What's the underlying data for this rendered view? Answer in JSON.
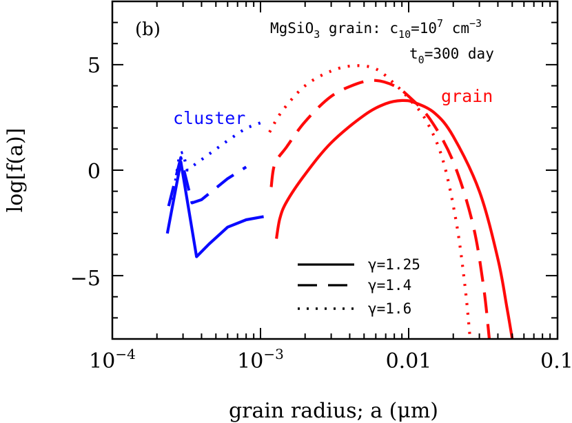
{
  "chart_data": {
    "type": "line",
    "panel_label": "(b)",
    "xlabel": "grain radius; a (μm)",
    "ylabel": "log[f(a)]",
    "xscale": "log",
    "xlim": [
      0.0001,
      0.1
    ],
    "ylim": [
      -8,
      8
    ],
    "x_ticks": [
      {
        "value": 0.0001,
        "base": "10",
        "exp": "−4"
      },
      {
        "value": 0.001,
        "base": "10",
        "exp": "−3"
      },
      {
        "value": 0.01,
        "text": "0.01"
      },
      {
        "value": 0.1,
        "text": "0.1"
      }
    ],
    "y_ticks": [
      {
        "value": 5,
        "text": "5"
      },
      {
        "value": 0,
        "text": "0"
      },
      {
        "value": -5,
        "text": "−5"
      }
    ],
    "info": {
      "line1_a": "MgSiO",
      "line1_sub": "3",
      "line1_b": " grain:  c",
      "line1_sub2": "10",
      "line1_c": "=10",
      "line1_sup": "7",
      "line1_d": " cm",
      "line1_sup2": "−3",
      "line2_a": "t",
      "line2_sub": "0",
      "line2_b": "=300 day"
    },
    "annotations": {
      "cluster": "cluster",
      "grain": "grain"
    },
    "colors": {
      "cluster": "#0a0aff",
      "grain": "#ff0a0a"
    },
    "legend_position": "bottom-right",
    "series": [
      {
        "name": "γ=1.25",
        "gamma": "1.25",
        "style": "solid",
        "group": "cluster",
        "points": [
          [
            0.000235,
            -3.0
          ],
          [
            0.00029,
            0.4
          ],
          [
            0.00037,
            -4.1
          ],
          [
            0.00045,
            -3.5
          ],
          [
            0.0006,
            -2.7
          ],
          [
            0.0008,
            -2.35
          ],
          [
            0.00105,
            -2.2
          ]
        ]
      },
      {
        "name": "γ=1.25",
        "gamma": "1.25",
        "style": "solid",
        "group": "grain",
        "points": [
          [
            0.00128,
            -3.25
          ],
          [
            0.00135,
            -2.3
          ],
          [
            0.0015,
            -1.5
          ],
          [
            0.002,
            -0.2
          ],
          [
            0.003,
            1.3
          ],
          [
            0.005,
            2.6
          ],
          [
            0.007,
            3.15
          ],
          [
            0.009,
            3.3
          ],
          [
            0.011,
            3.2
          ],
          [
            0.015,
            2.7
          ],
          [
            0.02,
            1.6
          ],
          [
            0.03,
            -1.0
          ],
          [
            0.04,
            -4.2
          ],
          [
            0.046,
            -6.5
          ],
          [
            0.05,
            -8.0
          ]
        ]
      },
      {
        "name": "γ=1.4",
        "gamma": "1.4",
        "style": "dashed",
        "group": "cluster",
        "points": [
          [
            0.00024,
            -1.7
          ],
          [
            0.00029,
            0.6
          ],
          [
            0.000345,
            -1.55
          ],
          [
            0.0004,
            -1.4
          ],
          [
            0.0006,
            -0.4
          ],
          [
            0.0008,
            0.15
          ]
        ]
      },
      {
        "name": "γ=1.4",
        "gamma": "1.4",
        "style": "dashed",
        "group": "grain",
        "points": [
          [
            0.00118,
            -0.8
          ],
          [
            0.00125,
            0.3
          ],
          [
            0.0015,
            1.1
          ],
          [
            0.002,
            2.3
          ],
          [
            0.003,
            3.5
          ],
          [
            0.0045,
            4.1
          ],
          [
            0.006,
            4.25
          ],
          [
            0.008,
            4.0
          ],
          [
            0.01,
            3.5
          ],
          [
            0.014,
            2.4
          ],
          [
            0.02,
            0.4
          ],
          [
            0.027,
            -2.5
          ],
          [
            0.032,
            -5.5
          ],
          [
            0.035,
            -8.0
          ]
        ]
      },
      {
        "name": "γ=1.6",
        "gamma": "1.6",
        "style": "dotted",
        "group": "cluster",
        "points": [
          [
            0.000255,
            -1.4
          ],
          [
            0.000285,
            0.8
          ],
          [
            0.0003,
            0.85
          ],
          [
            0.00032,
            0.0
          ],
          [
            0.0004,
            0.5
          ],
          [
            0.0006,
            1.4
          ],
          [
            0.0008,
            2.0
          ],
          [
            0.00105,
            2.3
          ]
        ]
      },
      {
        "name": "γ=1.6",
        "gamma": "1.6",
        "style": "dotted",
        "group": "grain",
        "points": [
          [
            0.00115,
            1.8
          ],
          [
            0.0014,
            2.8
          ],
          [
            0.002,
            4.0
          ],
          [
            0.003,
            4.7
          ],
          [
            0.0043,
            4.95
          ],
          [
            0.006,
            4.8
          ],
          [
            0.008,
            4.1
          ],
          [
            0.01,
            3.4
          ],
          [
            0.013,
            2.4
          ],
          [
            0.017,
            0.5
          ],
          [
            0.021,
            -2.5
          ],
          [
            0.024,
            -5.5
          ],
          [
            0.026,
            -8.0
          ]
        ]
      }
    ],
    "legend": [
      {
        "style": "solid",
        "label": "γ=1.25"
      },
      {
        "style": "dashed",
        "label": "γ=1.4"
      },
      {
        "style": "dotted",
        "label": "γ=1.6"
      }
    ]
  }
}
